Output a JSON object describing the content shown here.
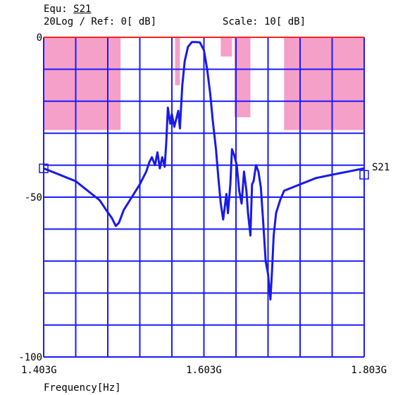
{
  "header": {
    "equ_label": "Equ:",
    "equ_value": "S21",
    "format_ref": "20Log / Ref: 0[ dB]",
    "scale": "Scale: 10[ dB]"
  },
  "colors": {
    "grid": "#1a1aff",
    "trace": "#1a1ae6",
    "mask": "#f5a0c8",
    "limit_line": "#ff2020"
  },
  "chart_data": {
    "type": "line",
    "xlabel": "Frequency[Hz]",
    "x_ticks": [
      "1.403G",
      "1.603G",
      "1.803G"
    ],
    "y_ticks": [
      "0",
      "-50",
      "-100"
    ],
    "xlim": [
      1.403,
      1.803
    ],
    "ylim": [
      -100,
      0
    ],
    "grid": true,
    "x_divisions": 10,
    "y_divisions": 10,
    "series": [
      {
        "name": "S21",
        "x": [
          1.403,
          1.413,
          1.423,
          1.433,
          1.443,
          1.453,
          1.463,
          1.473,
          1.481,
          1.488,
          1.493,
          1.497,
          1.503,
          1.513,
          1.523,
          1.531,
          1.535,
          1.538,
          1.542,
          1.545,
          1.548,
          1.551,
          1.554,
          1.556,
          1.558,
          1.561,
          1.563,
          1.566,
          1.568,
          1.571,
          1.573,
          1.576,
          1.579,
          1.583,
          1.588,
          1.593,
          1.598,
          1.603,
          1.607,
          1.611,
          1.614,
          1.618,
          1.621,
          1.624,
          1.627,
          1.631,
          1.633,
          1.636,
          1.638,
          1.641,
          1.644,
          1.647,
          1.65,
          1.653,
          1.656,
          1.658,
          1.661,
          1.663,
          1.665,
          1.668,
          1.671,
          1.674,
          1.677,
          1.68,
          1.683,
          1.686,
          1.688,
          1.69,
          1.693,
          1.698,
          1.703,
          1.713,
          1.723,
          1.733,
          1.743,
          1.753,
          1.763,
          1.773,
          1.783,
          1.793,
          1.803
        ],
        "values": [
          -41,
          -42,
          -43,
          -44,
          -45,
          -47,
          -49,
          -51,
          -54,
          -56.5,
          -59,
          -58,
          -54,
          -50,
          -46,
          -42,
          -39,
          -37.5,
          -40,
          -36,
          -41,
          -37.5,
          -40.5,
          -33,
          -22,
          -27,
          -24,
          -28,
          -26,
          -23,
          -28.5,
          -15,
          -7.5,
          -3,
          -1.5,
          -1.5,
          -1.6,
          -4,
          -10,
          -18,
          -26,
          -35,
          -44,
          -52,
          -57,
          -49,
          -55,
          -46,
          -35,
          -37,
          -40,
          -48,
          -52,
          -42,
          -48,
          -55,
          -62,
          -46,
          -45,
          -40,
          -42,
          -47,
          -58,
          -70,
          -74,
          -82,
          -73,
          -62,
          -55,
          -51,
          -48,
          -47,
          -46,
          -45,
          -44,
          -43.5,
          -43,
          -42.5,
          -42,
          -41.5,
          -41
        ]
      }
    ],
    "mask_regions": [
      {
        "x": [
          1.403,
          1.499
        ],
        "y": [
          0,
          -29
        ]
      },
      {
        "x": [
          1.567,
          1.573
        ],
        "y": [
          0,
          -15
        ]
      },
      {
        "x": [
          1.624,
          1.638
        ],
        "y": [
          0,
          -6
        ]
      },
      {
        "x": [
          1.641,
          1.661
        ],
        "y": [
          0,
          -25
        ]
      },
      {
        "x": [
          1.703,
          1.803
        ],
        "y": [
          0,
          -29
        ]
      }
    ],
    "marker_left_value": -41,
    "marker_right_value": -43,
    "trace_label": "S21"
  }
}
